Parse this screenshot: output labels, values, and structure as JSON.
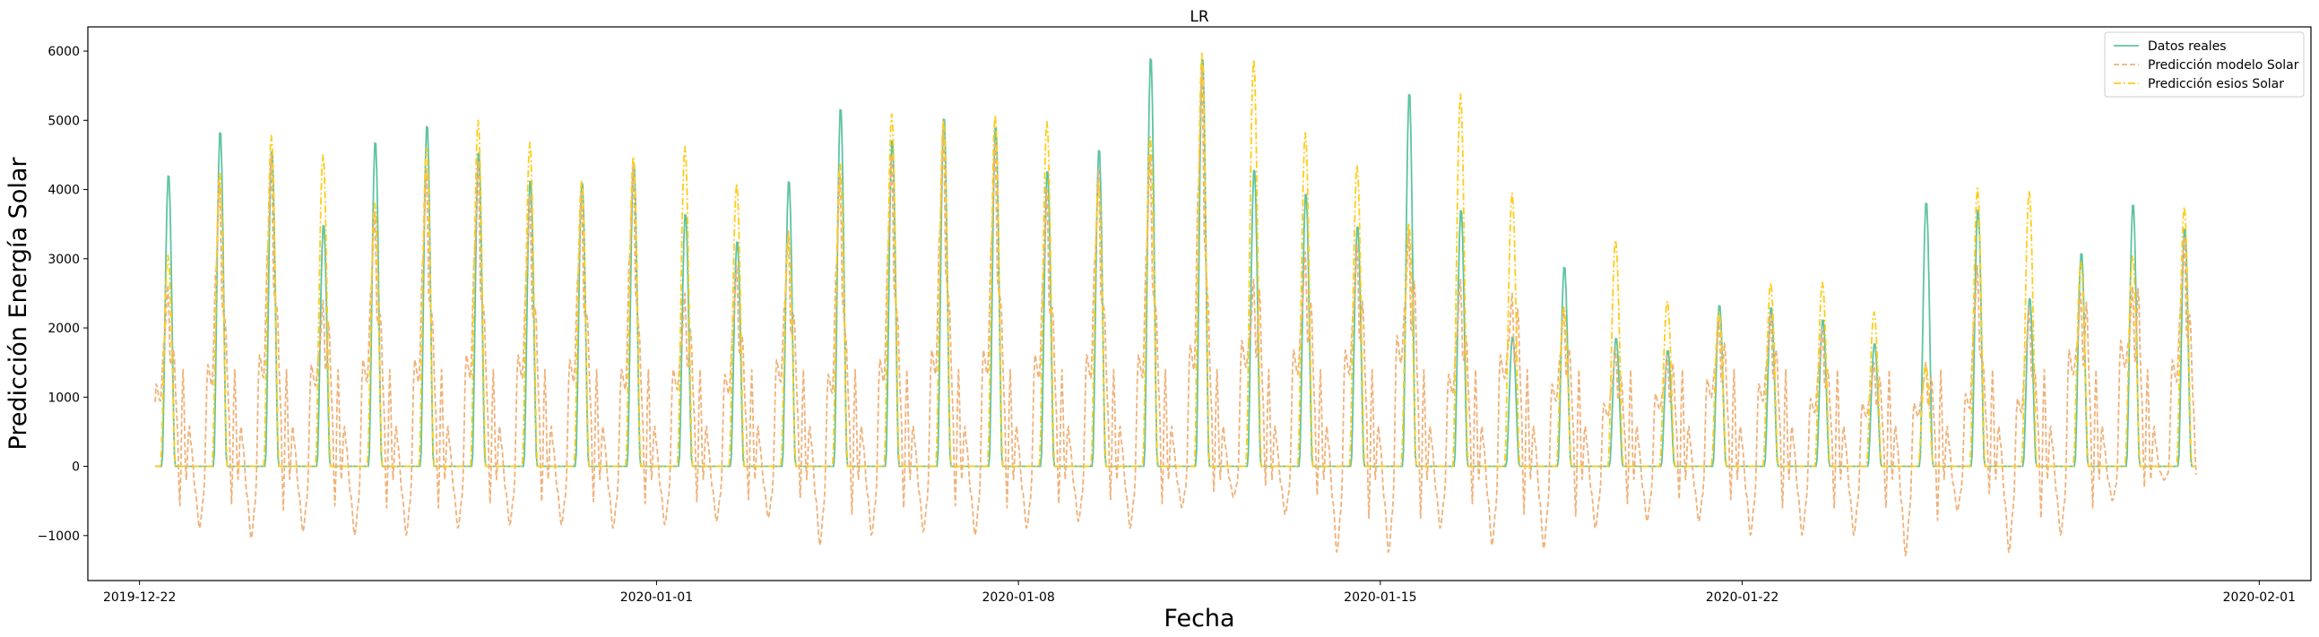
{
  "chart_data": {
    "type": "line",
    "title": "LR",
    "xlabel": "Fecha",
    "ylabel": "Predicción Energía Solar",
    "x_tick_labels": [
      "2019-12-22",
      "2020-01-01",
      "2020-01-08",
      "2020-01-15",
      "2020-01-22",
      "2020-02-01"
    ],
    "y_ticks": [
      -1000,
      0,
      1000,
      2000,
      3000,
      4000,
      5000,
      6000
    ],
    "y_tick_labels": [
      "−1000",
      "0",
      "1000",
      "2000",
      "3000",
      "4000",
      "5000",
      "6000"
    ],
    "xlim": [
      "2019-12-21",
      "2020-02-02"
    ],
    "ylim": [
      -1650,
      6350
    ],
    "grid": false,
    "legend_position": "top-right",
    "x": [
      "2019-12-22",
      "2019-12-23",
      "2019-12-24",
      "2019-12-25",
      "2019-12-26",
      "2019-12-27",
      "2019-12-28",
      "2019-12-29",
      "2019-12-30",
      "2019-12-31",
      "2020-01-01",
      "2020-01-02",
      "2020-01-03",
      "2020-01-04",
      "2020-01-05",
      "2020-01-06",
      "2020-01-07",
      "2020-01-08",
      "2020-01-09",
      "2020-01-10",
      "2020-01-11",
      "2020-01-12",
      "2020-01-13",
      "2020-01-14",
      "2020-01-15",
      "2020-01-16",
      "2020-01-17",
      "2020-01-18",
      "2020-01-19",
      "2020-01-20",
      "2020-01-21",
      "2020-01-22",
      "2020-01-23",
      "2020-01-24",
      "2020-01-25",
      "2020-01-26",
      "2020-01-27",
      "2020-01-28",
      "2020-01-29",
      "2020-01-30"
    ],
    "series": [
      {
        "name": "Datos reales",
        "color": "#5ec4a1",
        "style": "solid",
        "values": [
          4250,
          4880,
          4600,
          3520,
          4730,
          4970,
          4580,
          4170,
          4140,
          4420,
          3680,
          3280,
          4160,
          5220,
          4760,
          5080,
          4950,
          4310,
          4620,
          5960,
          5950,
          4330,
          3980,
          3500,
          5440,
          3740,
          1890,
          2910,
          1870,
          1690,
          2350,
          2320,
          2140,
          1790,
          3850,
          3750,
          2450,
          3110,
          3820,
          3470
        ]
      },
      {
        "name": "Predicción modelo Solar",
        "color": "#f0b27a",
        "style": "dashed",
        "values": [
          2620,
          4100,
          4500,
          2400,
          3700,
          4300,
          4400,
          3900,
          3950,
          4400,
          2500,
          2900,
          3400,
          4200,
          4500,
          4900,
          4700,
          4000,
          4300,
          4500,
          5800,
          2700,
          3100,
          3200,
          3400,
          2700,
          2500,
          2300,
          1700,
          1600,
          2100,
          2200,
          2000,
          1500,
          1500,
          2900,
          2300,
          2500,
          2600,
          3300
        ],
        "min_values": [
          -950,
          -900,
          -1050,
          -950,
          -1000,
          -1000,
          -900,
          -850,
          -850,
          -900,
          -850,
          -800,
          -750,
          -1150,
          -1000,
          -950,
          -1000,
          -900,
          -800,
          -900,
          -600,
          -450,
          -700,
          -1250,
          -1250,
          -900,
          -1150,
          -1200,
          -900,
          -800,
          -800,
          -1000,
          -1000,
          -1000,
          -1300,
          -650,
          -1250,
          -1000,
          -500,
          -200
        ],
        "mid_values": [
          1700,
          2100,
          2300,
          2100,
          2200,
          2200,
          2300,
          2300,
          2200,
          2000,
          2000,
          1900,
          2200,
          1900,
          2200,
          2400,
          2400,
          2300,
          2300,
          2300,
          2500,
          2600,
          2400,
          2400,
          2700,
          1900,
          2300,
          1700,
          1300,
          1500,
          1800,
          1700,
          1400,
          1300,
          1300,
          1500,
          1400,
          2400,
          2600,
          2200
        ]
      },
      {
        "name": "Predicción esios Solar",
        "color": "#ffcc1a",
        "style": "dashdot",
        "values": [
          3050,
          4250,
          4780,
          4500,
          3800,
          4600,
          5000,
          4680,
          4120,
          4480,
          4620,
          4080,
          3350,
          4380,
          5090,
          5010,
          5080,
          4980,
          4100,
          4760,
          5970,
          5880,
          4820,
          4350,
          3520,
          5380,
          3950,
          2300,
          3270,
          2390,
          2230,
          2650,
          2660,
          2230,
          1470,
          4020,
          3980,
          2950,
          3040,
          3750
        ]
      }
    ]
  }
}
